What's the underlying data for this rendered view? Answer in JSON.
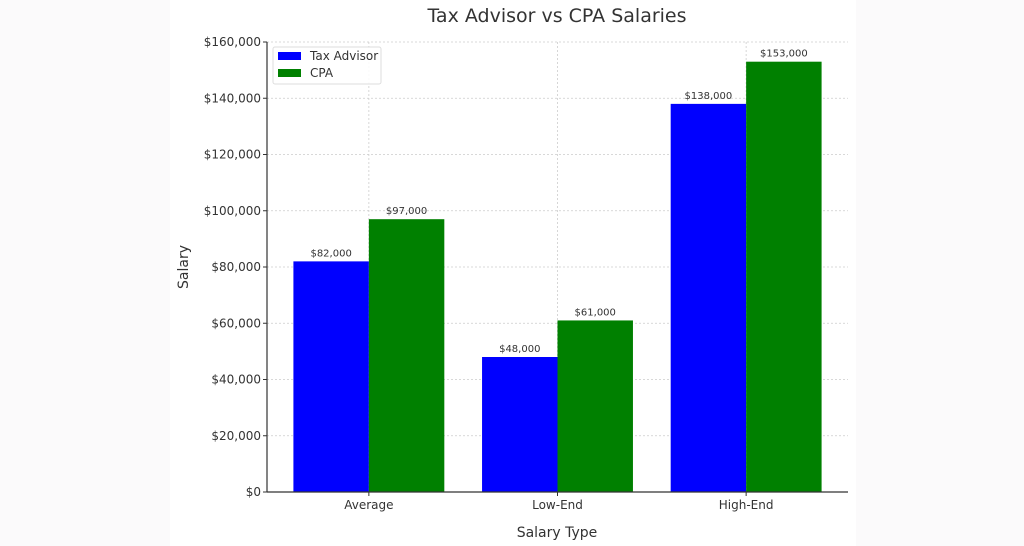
{
  "chart_data": {
    "type": "bar",
    "title": "Tax Advisor vs CPA Salaries",
    "xlabel": "Salary Type",
    "ylabel": "Salary",
    "categories": [
      "Average",
      "Low-End",
      "High-End"
    ],
    "series": [
      {
        "name": "Tax Advisor",
        "color": "#0000ff",
        "values": [
          82000,
          48000,
          138000
        ],
        "labels": [
          "$82,000",
          "$48,000",
          "$138,000"
        ]
      },
      {
        "name": "CPA",
        "color": "#008000",
        "values": [
          97000,
          61000,
          153000
        ],
        "labels": [
          "$97,000",
          "$61,000",
          "$153,000"
        ]
      }
    ],
    "ylim": [
      0,
      160000
    ],
    "yticks": [
      0,
      20000,
      40000,
      60000,
      80000,
      100000,
      120000,
      140000,
      160000
    ],
    "ytick_labels": [
      "$0",
      "$20,000",
      "$40,000",
      "$60,000",
      "$80,000",
      "$100,000",
      "$120,000",
      "$140,000",
      "$160,000"
    ],
    "grid": true,
    "legend": "top-left"
  }
}
